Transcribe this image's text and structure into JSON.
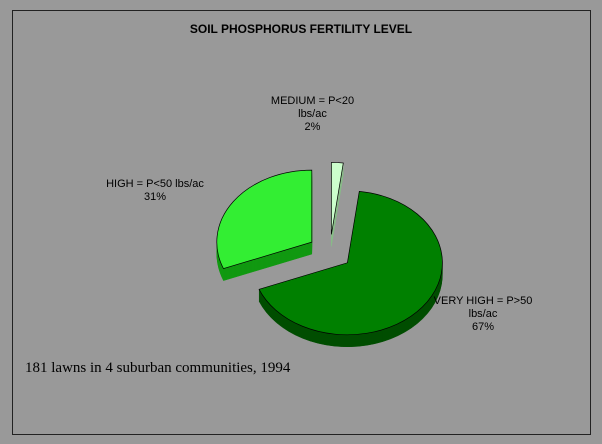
{
  "chart_data": {
    "type": "pie",
    "title": "SOIL PHOSPHORUS FERTILITY LEVEL",
    "categories": [
      "MEDIUM = P<20 lbs/ac",
      "VERY HIGH = P>50 lbs/ac",
      "HIGH = P<50 lbs/ac"
    ],
    "values": [
      2,
      67,
      31
    ],
    "value_labels": [
      "2%",
      "67%",
      "31%"
    ],
    "colors": [
      "#ccffcc",
      "#008000",
      "#33ee33"
    ],
    "side_colors": [
      "#88bb88",
      "#004d00",
      "#119911"
    ],
    "note": "181 lawns in 4 suburban communities, 1994"
  }
}
